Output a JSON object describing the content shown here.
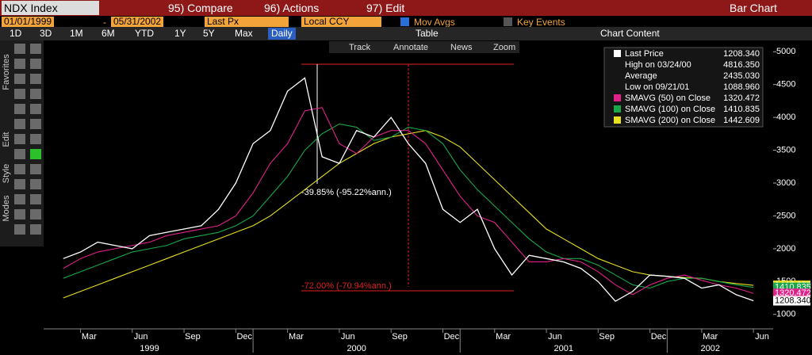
{
  "toolbar": {
    "ticker": "NDX Index",
    "compare": "95) Compare",
    "actions": "96) Actions",
    "edit": "97) Edit",
    "chart_type": "Bar Chart"
  },
  "controls": {
    "start": "01/01/1999",
    "dash": "-",
    "end": "05/31/2002",
    "field": "Last Px",
    "currency": "Local CCY",
    "mov_avgs": "Mov Avgs",
    "key_events": "Key Events"
  },
  "periods": [
    "1D",
    "3D",
    "1M",
    "6M",
    "YTD",
    "1Y",
    "5Y",
    "Max"
  ],
  "frequency": "Daily",
  "table": "Table",
  "chart_content": "Chart Content",
  "tools": [
    "Track",
    "Annotate",
    "News",
    "Zoom"
  ],
  "side_tabs": [
    "Favorites",
    "Edit",
    "Style",
    "Modes"
  ],
  "chart_data": {
    "type": "line",
    "x": [
      "1999-01",
      "1999-02",
      "1999-03",
      "1999-04",
      "1999-05",
      "1999-06",
      "1999-07",
      "1999-08",
      "1999-09",
      "1999-10",
      "1999-11",
      "1999-12",
      "2000-01",
      "2000-02",
      "2000-03",
      "2000-04",
      "2000-05",
      "2000-06",
      "2000-07",
      "2000-08",
      "2000-09",
      "2000-10",
      "2000-11",
      "2000-12",
      "2001-01",
      "2001-02",
      "2001-03",
      "2001-04",
      "2001-05",
      "2001-06",
      "2001-07",
      "2001-08",
      "2001-09",
      "2001-10",
      "2001-11",
      "2001-12",
      "2002-01",
      "2002-02",
      "2002-03",
      "2002-04",
      "2002-05"
    ],
    "series": [
      {
        "name": "Last Price",
        "color": "#ffffff",
        "last_label": "1208.340",
        "values": [
          1850,
          1950,
          2100,
          2050,
          2000,
          2200,
          2250,
          2300,
          2350,
          2600,
          3000,
          3600,
          3800,
          4400,
          4600,
          3400,
          3300,
          3800,
          3700,
          4000,
          3600,
          3300,
          2600,
          2400,
          2600,
          2000,
          1600,
          1900,
          1850,
          1800,
          1700,
          1500,
          1200,
          1350,
          1600,
          1580,
          1550,
          1400,
          1450,
          1300,
          1208
        ]
      },
      {
        "name": "SMAVG (50)  on Close",
        "color": "#e0218a",
        "last_label": "1320.472",
        "values": [
          1700,
          1850,
          1950,
          2000,
          2050,
          2100,
          2200,
          2250,
          2300,
          2350,
          2500,
          2850,
          3300,
          3600,
          4100,
          4150,
          3600,
          3450,
          3700,
          3800,
          3800,
          3600,
          3200,
          2800,
          2500,
          2400,
          2100,
          1800,
          1800,
          1850,
          1800,
          1650,
          1450,
          1300,
          1450,
          1550,
          1600,
          1520,
          1450,
          1400,
          1320
        ]
      },
      {
        "name": "SMAVG (100)  on Close",
        "color": "#18a848",
        "last_label": "1410.835",
        "values": [
          1550,
          1650,
          1750,
          1850,
          1950,
          2000,
          2050,
          2150,
          2200,
          2250,
          2350,
          2500,
          2800,
          3100,
          3500,
          3750,
          3900,
          3850,
          3650,
          3700,
          3850,
          3800,
          3600,
          3200,
          2900,
          2650,
          2400,
          2150,
          1950,
          1850,
          1850,
          1750,
          1600,
          1450,
          1400,
          1500,
          1550,
          1550,
          1500,
          1450,
          1411
        ]
      },
      {
        "name": "SMAVG (200)  on Close",
        "color": "#e8e020",
        "last_label": "1442.609",
        "values": [
          1250,
          1350,
          1450,
          1550,
          1650,
          1750,
          1850,
          1950,
          2050,
          2150,
          2250,
          2350,
          2500,
          2700,
          2900,
          3100,
          3300,
          3450,
          3600,
          3700,
          3750,
          3800,
          3700,
          3550,
          3300,
          3050,
          2800,
          2550,
          2300,
          2150,
          2000,
          1850,
          1750,
          1650,
          1600,
          1580,
          1560,
          1550,
          1500,
          1470,
          1443
        ]
      }
    ],
    "stats": [
      {
        "name": "High on 03/24/00",
        "value": "4816.350"
      },
      {
        "name": "Average",
        "value": "2435.030"
      },
      {
        "name": "Low on 09/21/01",
        "value": "1088.960"
      }
    ],
    "annotations": [
      "-39.85% (-95.22%ann.)",
      "-72.00% (-70.94%ann.)"
    ],
    "xlim": [
      "1999-01",
      "2002-06"
    ],
    "ylim": [
      780,
      5160
    ],
    "yticks": [
      1000,
      1500,
      2000,
      2500,
      3000,
      3500,
      4000,
      4500,
      5000
    ],
    "xticks": [
      {
        "value": "1999-03",
        "label": "Mar"
      },
      {
        "value": "1999-06",
        "label": "Jun"
      },
      {
        "value": "1999-09",
        "label": "Sep"
      },
      {
        "value": "1999-12",
        "label": "Dec"
      },
      {
        "value": "2000-03",
        "label": "Mar"
      },
      {
        "value": "2000-06",
        "label": "Jun"
      },
      {
        "value": "2000-09",
        "label": "Sep"
      },
      {
        "value": "2000-12",
        "label": "Dec"
      },
      {
        "value": "2001-03",
        "label": "Mar"
      },
      {
        "value": "2001-06",
        "label": "Jun"
      },
      {
        "value": "2001-09",
        "label": "Sep"
      },
      {
        "value": "2001-12",
        "label": "Dec"
      },
      {
        "value": "2002-03",
        "label": "Mar"
      },
      {
        "value": "2002-06",
        "label": "Jun"
      }
    ],
    "years": [
      "1999",
      "2000",
      "2001",
      "2002"
    ]
  }
}
